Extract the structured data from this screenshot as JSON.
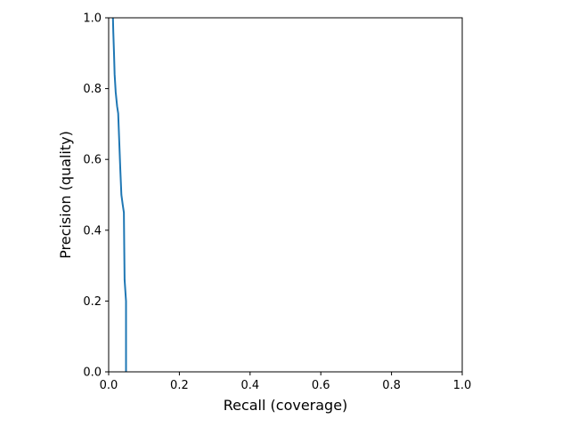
{
  "chart_data": {
    "type": "line",
    "title": "",
    "xlabel": "Recall (coverage)",
    "ylabel": "Precision (quality)",
    "xlim": [
      0,
      1
    ],
    "ylim": [
      0,
      1
    ],
    "x_ticks": [
      "0.0",
      "0.2",
      "0.4",
      "0.6",
      "0.8",
      "1.0"
    ],
    "y_ticks": [
      "0.0",
      "0.2",
      "0.4",
      "0.6",
      "0.8",
      "1.0"
    ],
    "grid": false,
    "legend": "none",
    "series": [
      {
        "color": "#1f77b4",
        "points": [
          [
            0.012,
            1.0
          ],
          [
            0.013,
            0.96
          ],
          [
            0.015,
            0.9
          ],
          [
            0.017,
            0.84
          ],
          [
            0.02,
            0.79
          ],
          [
            0.024,
            0.75
          ],
          [
            0.027,
            0.73
          ],
          [
            0.03,
            0.65
          ],
          [
            0.033,
            0.57
          ],
          [
            0.036,
            0.5
          ],
          [
            0.04,
            0.47
          ],
          [
            0.043,
            0.45
          ],
          [
            0.044,
            0.35
          ],
          [
            0.045,
            0.26
          ],
          [
            0.049,
            0.2
          ],
          [
            0.049,
            0.1
          ],
          [
            0.049,
            0.0
          ]
        ]
      }
    ]
  }
}
